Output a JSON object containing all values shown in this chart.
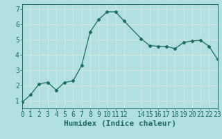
{
  "x": [
    0,
    1,
    2,
    3,
    4,
    5,
    6,
    7,
    8,
    9,
    10,
    11,
    12,
    14,
    15,
    16,
    17,
    18,
    19,
    20,
    21,
    22,
    23
  ],
  "y": [
    0.9,
    1.4,
    2.1,
    2.2,
    1.7,
    2.2,
    2.3,
    3.3,
    5.5,
    6.3,
    6.8,
    6.8,
    6.2,
    5.05,
    4.6,
    4.55,
    4.55,
    4.4,
    4.8,
    4.9,
    4.95,
    4.55,
    3.7
  ],
  "line_color": "#1a6b5e",
  "marker": "D",
  "marker_size": 2.5,
  "bg_color": "#b2e0e0",
  "grid_color": "#d0e8e8",
  "xlabel": "Humidex (Indice chaleur)",
  "xlim": [
    0,
    23
  ],
  "ylim": [
    0.5,
    7.3
  ],
  "xticks": [
    0,
    1,
    2,
    3,
    4,
    5,
    6,
    7,
    8,
    9,
    10,
    11,
    12,
    14,
    15,
    16,
    17,
    18,
    19,
    20,
    21,
    22,
    23
  ],
  "yticks": [
    1,
    2,
    3,
    4,
    5,
    6,
    7
  ],
  "tick_color": "#1a6b5e",
  "label_color": "#1a6b5e",
  "font_size": 7,
  "xlabel_fontsize": 8
}
